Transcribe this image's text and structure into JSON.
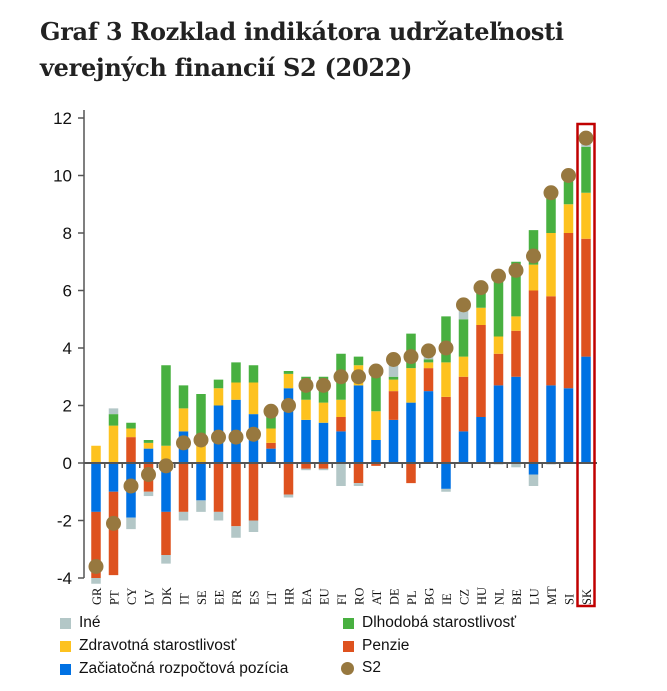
{
  "title": "Graf 3 Rozklad indikátora udržateľnosti verejných financií S2 (2022)",
  "chart_data": {
    "type": "bar",
    "stacked": true,
    "title": "Graf 3 Rozklad indikátora udržateľnosti verejných financií S2 (2022)",
    "xlabel": "",
    "ylabel": "",
    "ylim": [
      -4,
      12
    ],
    "yticks": [
      -4,
      -2,
      0,
      2,
      4,
      6,
      8,
      10,
      12
    ],
    "legend_position": "bottom",
    "categories": [
      "GR",
      "PT",
      "CY",
      "LV",
      "DK",
      "IT",
      "SE",
      "EE",
      "FR",
      "ES",
      "LT",
      "HR",
      "EA",
      "EU",
      "FI",
      "RO",
      "AT",
      "DE",
      "PL",
      "BG",
      "IE",
      "CZ",
      "HU",
      "NL",
      "BE",
      "LU",
      "MT",
      "SI",
      "SK"
    ],
    "highlight": "SK",
    "series": [
      {
        "name": "Začiatočná rozpočtová pozícia",
        "color": "#0071e3",
        "values": [
          -1.7,
          -1.0,
          -1.9,
          0.5,
          -1.7,
          1.1,
          -1.3,
          2.0,
          2.2,
          1.7,
          0.5,
          2.6,
          1.5,
          1.4,
          1.1,
          2.7,
          0.8,
          1.5,
          2.1,
          2.5,
          -0.9,
          1.1,
          1.6,
          2.7,
          3.0,
          -0.4,
          2.7,
          2.6,
          3.7
        ]
      },
      {
        "name": "Penzie",
        "color": "#de521f",
        "values": [
          -2.3,
          -2.9,
          0.9,
          -1.0,
          -1.5,
          -1.7,
          0,
          -1.7,
          -2.2,
          -2.0,
          0.2,
          -1.1,
          -0.2,
          -0.2,
          0.5,
          -0.7,
          -0.1,
          1.0,
          -0.7,
          0.8,
          2.3,
          1.9,
          3.2,
          1.1,
          1.6,
          6.0,
          3.1,
          5.4,
          4.1
        ]
      },
      {
        "name": "Zdravotná starostlivosť",
        "color": "#fdc21f",
        "values": [
          0.6,
          1.3,
          0.3,
          0.2,
          0.6,
          0.8,
          0.7,
          0.6,
          0.6,
          1.1,
          0.5,
          0.5,
          0.7,
          0.7,
          0.6,
          0.7,
          1.0,
          0.4,
          1.2,
          0.2,
          1.2,
          0.7,
          0.6,
          0.6,
          0.5,
          0.9,
          2.2,
          1.0,
          1.6
        ]
      },
      {
        "name": "Dlhodobá starostlivosť",
        "color": "#48b040",
        "values": [
          0,
          0.4,
          0.2,
          0.1,
          2.8,
          0.8,
          1.7,
          0.3,
          0.7,
          0.6,
          0.6,
          0.1,
          0.8,
          0.9,
          1.6,
          0.3,
          1.2,
          0.1,
          1.2,
          0.1,
          1.6,
          1.3,
          0.6,
          2.1,
          1.9,
          1.2,
          1.2,
          0.8,
          1.6
        ]
      },
      {
        "name": "Iné",
        "color": "#b3c7c7",
        "values": [
          -0.2,
          0.2,
          -0.4,
          -0.15,
          -0.3,
          -0.3,
          -0.4,
          -0.3,
          -0.4,
          -0.4,
          0,
          -0.1,
          -0.05,
          -0.05,
          -0.8,
          -0.1,
          0,
          0.4,
          0,
          0.2,
          -0.1,
          0.3,
          0,
          -0.05,
          -0.15,
          -0.4,
          -0.05,
          0,
          0.2
        ]
      }
    ],
    "s2": {
      "name": "S2",
      "color": "#97783f",
      "values": [
        -3.6,
        -2.1,
        -0.8,
        -0.4,
        -0.1,
        0.7,
        0.8,
        0.9,
        0.9,
        1.0,
        1.8,
        2.0,
        2.7,
        2.7,
        3.0,
        3.0,
        3.2,
        3.6,
        3.7,
        3.9,
        4.0,
        5.5,
        6.1,
        6.5,
        6.7,
        7.2,
        9.4,
        10.0,
        11.3
      ]
    },
    "legend": [
      {
        "label": "Iné",
        "color": "#b3c7c7",
        "kind": "square"
      },
      {
        "label": "Dlhodobá starostlivosť",
        "color": "#48b040",
        "kind": "square"
      },
      {
        "label": "Zdravotná starostlivosť",
        "color": "#fdc21f",
        "kind": "square"
      },
      {
        "label": "Penzie",
        "color": "#de521f",
        "kind": "square"
      },
      {
        "label": "Začiatočná rozpočtová pozícia",
        "color": "#0071e3",
        "kind": "square"
      },
      {
        "label": "S2",
        "color": "#97783f",
        "kind": "circle"
      }
    ],
    "highlight_color": "#c00000"
  }
}
